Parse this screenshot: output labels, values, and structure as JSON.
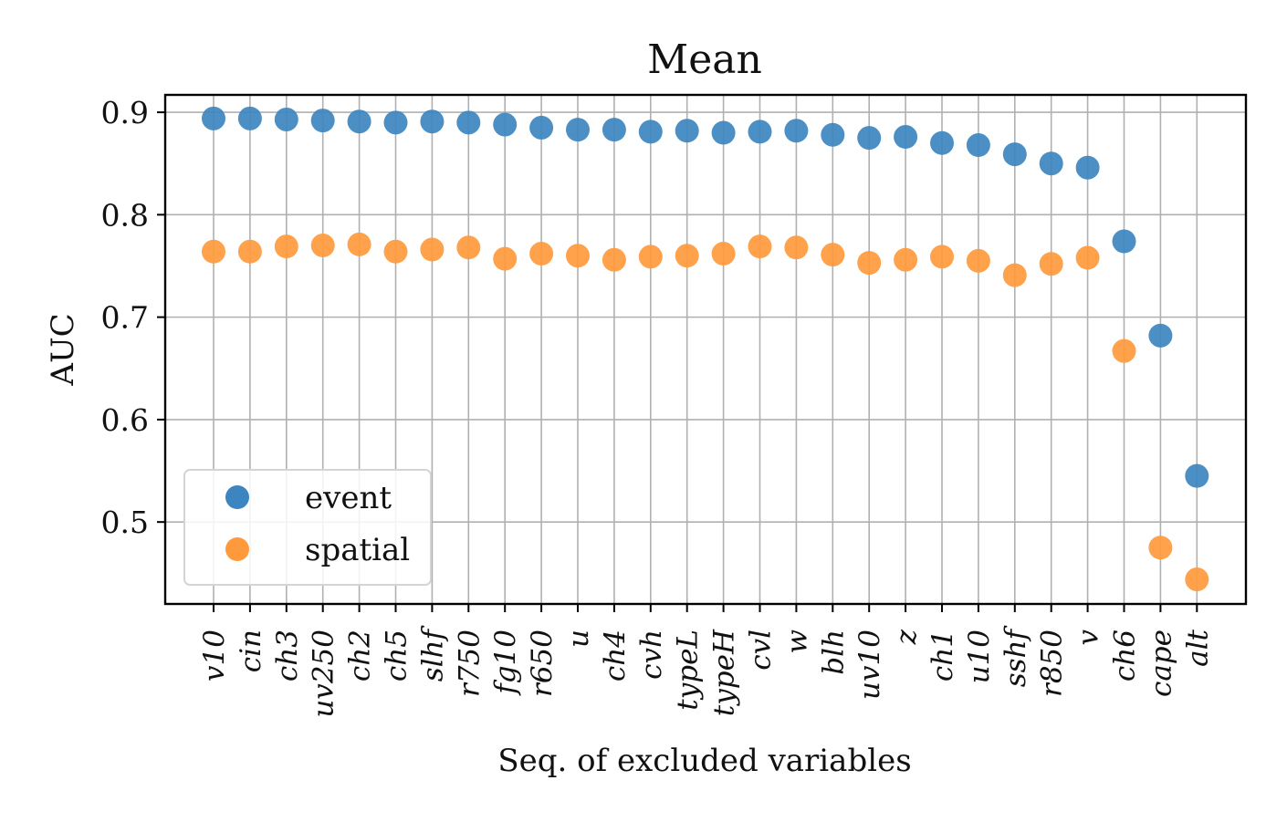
{
  "chart_data": {
    "type": "scatter",
    "title": "Mean",
    "xlabel": "Seq. of excluded variables",
    "ylabel": "AUC",
    "ylim": [
      0.42,
      0.917
    ],
    "yticks": [
      0.5,
      0.6,
      0.7,
      0.8,
      0.9
    ],
    "ytick_labels": [
      "0.5",
      "0.6",
      "0.7",
      "0.8",
      "0.9"
    ],
    "grid": true,
    "legend_position": "lower-left",
    "categories": [
      "v10",
      "cin",
      "ch3",
      "uv250",
      "ch2",
      "ch5",
      "slhf",
      "r750",
      "fg10",
      "r650",
      "u",
      "ch4",
      "cvh",
      "typeL",
      "typeH",
      "cvl",
      "w",
      "blh",
      "uv10",
      "z",
      "ch1",
      "u10",
      "sshf",
      "r850",
      "v",
      "ch6",
      "cape",
      "alt"
    ],
    "series": [
      {
        "name": "event",
        "color": "#3c85c0",
        "values": [
          0.894,
          0.894,
          0.893,
          0.892,
          0.891,
          0.89,
          0.891,
          0.89,
          0.888,
          0.885,
          0.883,
          0.883,
          0.881,
          0.882,
          0.88,
          0.881,
          0.882,
          0.878,
          0.875,
          0.876,
          0.87,
          0.868,
          0.859,
          0.85,
          0.846,
          0.774,
          0.682,
          0.545
        ]
      },
      {
        "name": "spatial",
        "color": "#ff9a3c",
        "values": [
          0.764,
          0.764,
          0.769,
          0.77,
          0.771,
          0.764,
          0.766,
          0.768,
          0.757,
          0.762,
          0.76,
          0.756,
          0.759,
          0.76,
          0.762,
          0.769,
          0.768,
          0.761,
          0.753,
          0.756,
          0.759,
          0.755,
          0.741,
          0.752,
          0.758,
          0.667,
          0.475,
          0.444
        ]
      }
    ]
  }
}
